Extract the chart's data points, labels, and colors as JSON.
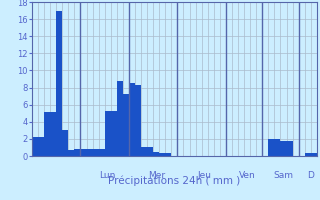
{
  "xlabel": "Précipitations 24h ( mm )",
  "background_color": "#cceeff",
  "bar_color": "#1a52c8",
  "grid_color": "#aabbcc",
  "separator_color": "#5566aa",
  "tick_color": "#5566cc",
  "label_color": "#5566cc",
  "ylim": [
    0,
    18
  ],
  "yticks": [
    0,
    2,
    4,
    6,
    8,
    10,
    12,
    14,
    16,
    18
  ],
  "day_labels": [
    "Lun",
    "Mer",
    "Jeu",
    "Ven",
    "Sam",
    "D"
  ],
  "day_sep_indices": [
    8,
    16,
    24,
    32,
    38,
    44
  ],
  "day_label_center": [
    12,
    20,
    28,
    35,
    41,
    45.5
  ],
  "values": [
    2.2,
    2.2,
    5.2,
    5.2,
    17.0,
    3.0,
    0.7,
    0.8,
    0.8,
    0.8,
    0.8,
    0.8,
    5.3,
    5.3,
    8.8,
    7.2,
    8.5,
    8.3,
    1.0,
    1.1,
    0.5,
    0.4,
    0.4,
    0.0,
    0.0,
    0.0,
    0.0,
    0.0,
    0.0,
    0.0,
    0.0,
    0.0,
    0.0,
    0.0,
    0.0,
    0.0,
    0.0,
    0.0,
    0.0,
    2.0,
    2.0,
    1.7,
    1.7,
    0.0,
    0.0,
    0.3,
    0.3
  ]
}
